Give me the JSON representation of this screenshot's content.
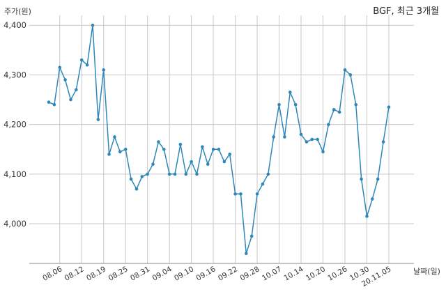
{
  "chart_data": {
    "type": "line",
    "title": "BGF, 최근 3개월",
    "ylabel": "주가(원)",
    "xlabel": "날짜(일)",
    "ylim": [
      3920,
      4420
    ],
    "yticks": [
      4000,
      4100,
      4200,
      4300,
      4400
    ],
    "ytick_labels": [
      "4,000",
      "4,100",
      "4,200",
      "4,300",
      "4,400"
    ],
    "grid": true,
    "line_color": "#2e86b9",
    "xtick_labels": [
      "08.06",
      "08.12",
      "08.19",
      "08.25",
      "08.31",
      "09.04",
      "09.10",
      "09.16",
      "09.22",
      "09.28",
      "10.07",
      "10.14",
      "10.20",
      "10.26",
      "10.30",
      "20.11.05"
    ],
    "xtick_index": [
      2,
      6,
      10,
      14,
      18,
      22,
      26,
      30,
      34,
      38,
      42,
      46,
      50,
      54,
      58,
      62
    ],
    "series": [
      {
        "values": [
          4245,
          4240,
          4315,
          4290,
          4250,
          4270,
          4330,
          4320,
          4400,
          4210,
          4310,
          4140,
          4175,
          4145,
          4150,
          4090,
          4070,
          4095,
          4100,
          4120,
          4165,
          4150,
          4100,
          4100,
          4160,
          4100,
          4125,
          4100,
          4155,
          4120,
          4150,
          4150,
          4125,
          4140,
          4060,
          4060,
          3940,
          3975,
          4060,
          4080,
          4100,
          4175,
          4240,
          4175,
          4265,
          4240,
          4180,
          4165,
          4170,
          4170,
          4145,
          4200,
          4230,
          4225,
          4310,
          4300,
          4240,
          4090,
          4015,
          4050,
          4090,
          4165,
          4235
        ]
      }
    ]
  }
}
